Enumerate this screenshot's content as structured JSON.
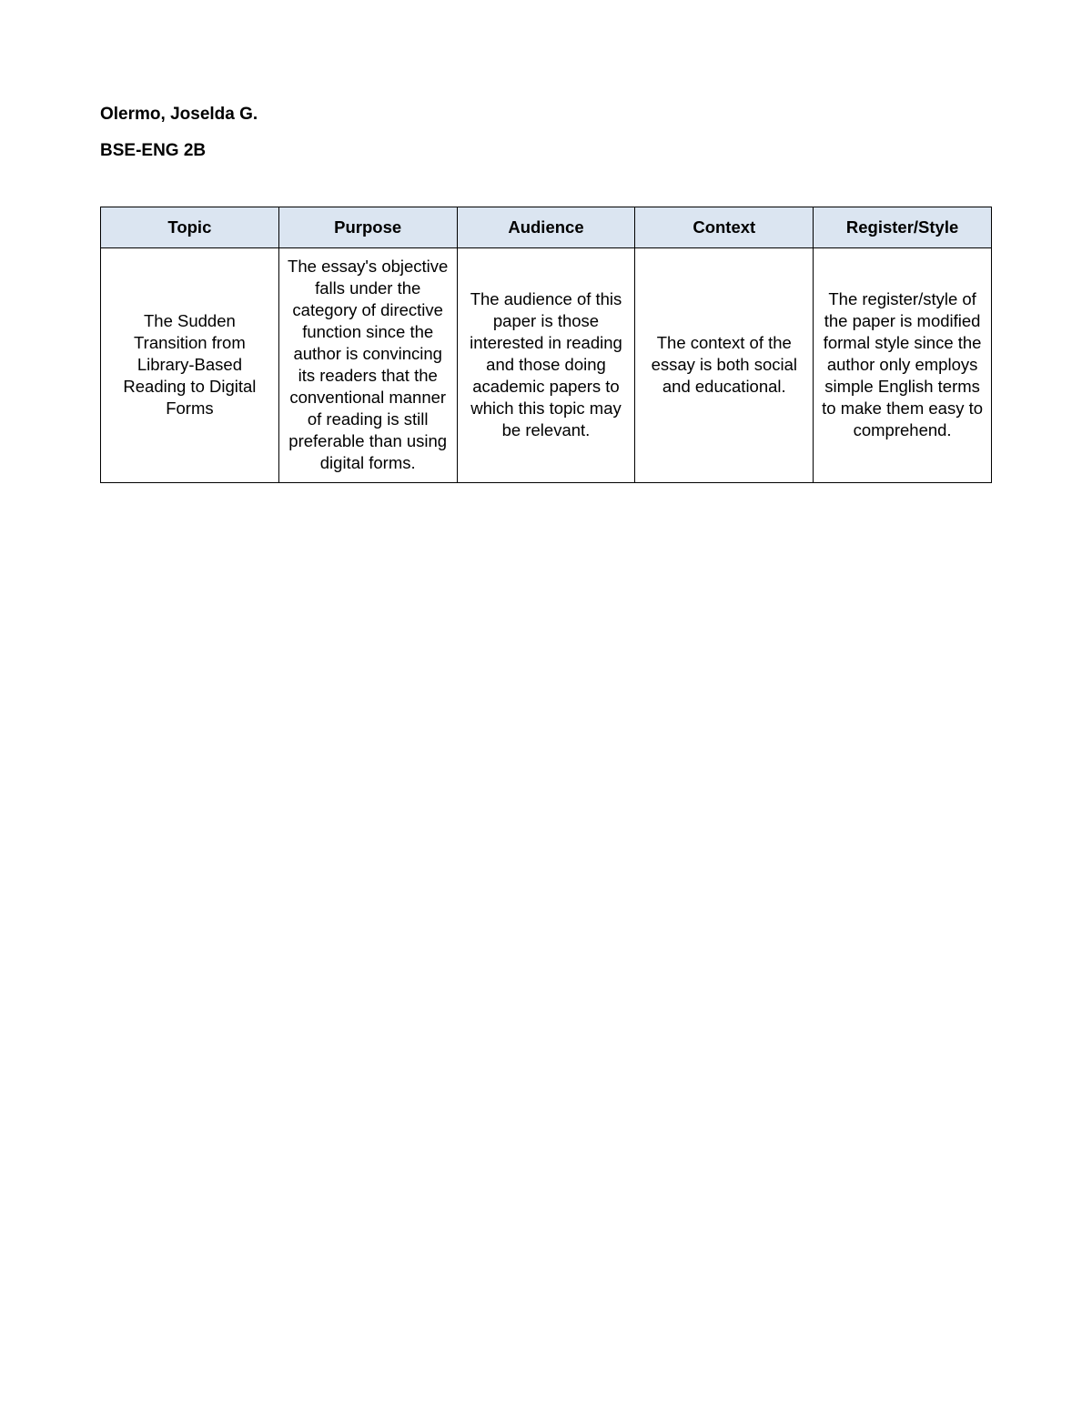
{
  "header": {
    "name": "Olermo, Joselda G.",
    "section": "BSE-ENG 2B"
  },
  "table": {
    "header_bg": "#dbe5f1",
    "border_color": "#000000",
    "columns": [
      "Topic",
      "Purpose",
      "Audience",
      "Context",
      "Register/Style"
    ],
    "rows": [
      {
        "topic": "The Sudden Transition from Library-Based Reading to Digital Forms",
        "purpose": "The essay's objective falls under the category of directive function since the author is convincing its readers that the conventional manner of reading is still preferable than using digital forms.",
        "audience": "The audience of this paper is those interested in reading and those doing academic papers to which this topic may be relevant.",
        "context": "The context of the essay is both social and educational.",
        "register_style": "The register/style of the paper is modified formal style since the author only employs simple English terms to make them easy to comprehend."
      }
    ]
  }
}
